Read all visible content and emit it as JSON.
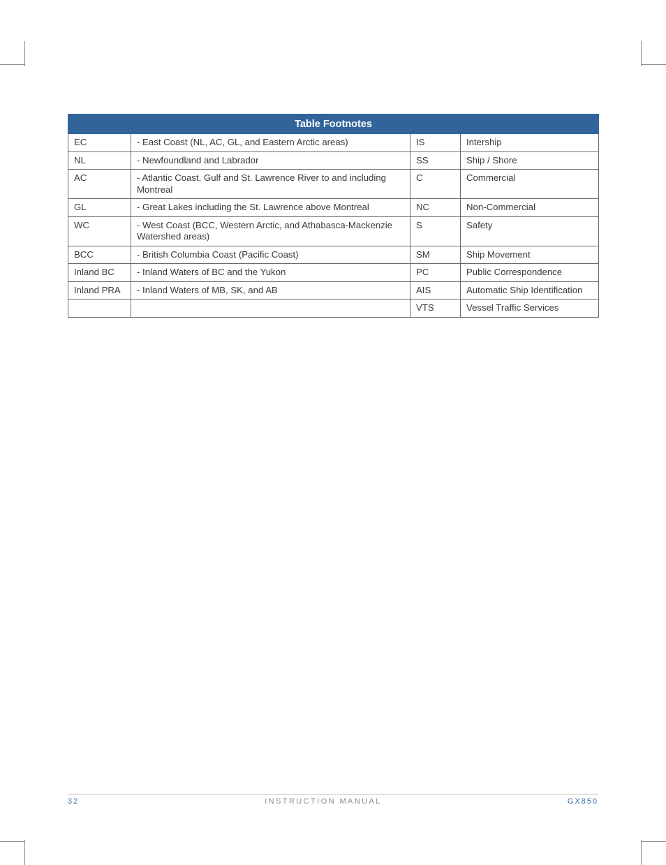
{
  "table": {
    "header": "Table Footnotes",
    "header_bg": "#32649b",
    "header_color": "#ffffff",
    "border_color": "#6a6a6a",
    "rows": [
      {
        "c1": "EC",
        "c2": "- East Coast (NL, AC, GL, and Eastern Arctic areas)",
        "c3": "IS",
        "c4": "Intership"
      },
      {
        "c1": "NL",
        "c2": "- Newfoundland and Labrador",
        "c3": "SS",
        "c4": "Ship / Shore"
      },
      {
        "c1": "AC",
        "c2": "- Atlantic Coast, Gulf and St. Lawrence River to and including Montreal",
        "c3": "C",
        "c4": "Commercial"
      },
      {
        "c1": "GL",
        "c2": "- Great Lakes including the St. Lawrence above Montreal",
        "c3": "NC",
        "c4": "Non-Commercial"
      },
      {
        "c1": "WC",
        "c2": "- West Coast (BCC, Western Arctic, and Athabasca-Mackenzie Watershed areas)",
        "c3": "S",
        "c4": "Safety"
      },
      {
        "c1": "BCC",
        "c2": "- British Columbia Coast (Pacific Coast)",
        "c3": "SM",
        "c4": "Ship Movement"
      },
      {
        "c1": "Inland BC",
        "c2": "- Inland Waters of BC and the Yukon",
        "c3": "PC",
        "c4": "Public Correspondence"
      },
      {
        "c1": "Inland PRA",
        "c2": "- Inland Waters of MB, SK, and AB",
        "c3": "AIS",
        "c4": "Automatic Ship Identification"
      },
      {
        "c1": "",
        "c2": "",
        "c3": "VTS",
        "c4": "Vessel Traffic Services"
      }
    ]
  },
  "footer": {
    "page": "32",
    "center": "INSTRUCTION MANUAL",
    "right": "GX850",
    "left_color": "#356aa3",
    "center_color": "#8a8a8a",
    "right_color": "#356aa3"
  }
}
